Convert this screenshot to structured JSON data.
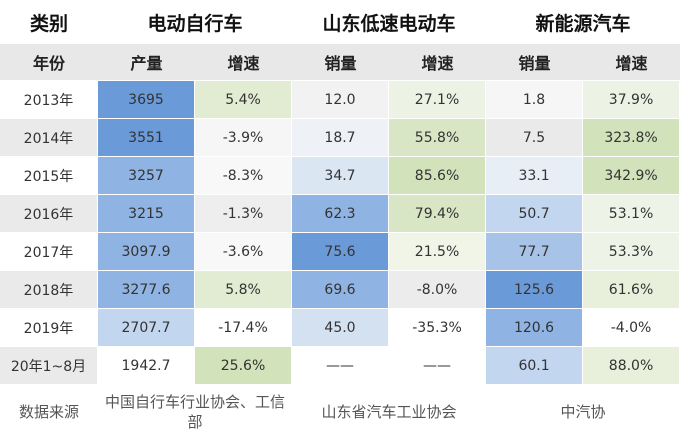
{
  "header": {
    "category_label": "类别",
    "groups": [
      "电动自行车",
      "山东低速电动车",
      "新能源汽车"
    ],
    "year_label": "年份",
    "subheaders": [
      "产量",
      "增速",
      "销量",
      "增速",
      "销量",
      "增速"
    ]
  },
  "rows": [
    {
      "year": "2013年",
      "cells": [
        "3695",
        "5.4%",
        "12.0",
        "27.1%",
        "1.8",
        "37.9%"
      ]
    },
    {
      "year": "2014年",
      "cells": [
        "3551",
        "-3.9%",
        "18.7",
        "55.8%",
        "7.5",
        "323.8%"
      ]
    },
    {
      "year": "2015年",
      "cells": [
        "3257",
        "-8.3%",
        "34.7",
        "85.6%",
        "33.1",
        "342.9%"
      ]
    },
    {
      "year": "2016年",
      "cells": [
        "3215",
        "-1.3%",
        "62.3",
        "79.4%",
        "50.7",
        "53.1%"
      ]
    },
    {
      "year": "2017年",
      "cells": [
        "3097.9",
        "-3.6%",
        "75.6",
        "21.5%",
        "77.7",
        "53.3%"
      ]
    },
    {
      "year": "2018年",
      "cells": [
        "3277.6",
        "5.8%",
        "69.6",
        "-8.0%",
        "125.6",
        "61.6%"
      ]
    },
    {
      "year": "2019年",
      "cells": [
        "2707.7",
        "-17.4%",
        "45.0",
        "-35.3%",
        "120.6",
        "-4.0%"
      ]
    },
    {
      "year": "20年1~8月",
      "cells": [
        "1942.7",
        "25.6%",
        "——",
        "——",
        "60.1",
        "88.0%"
      ]
    }
  ],
  "source": {
    "label": "数据来源",
    "values": [
      "中国自行车行业协会、工信部",
      "山东省汽车工业协会",
      "中汽协"
    ]
  },
  "colors": {
    "header_row1_bg": "#ffffff",
    "header_row2_bg": "#e8e8e8",
    "row_odd_bg": "#ffffff",
    "row_even_bg": "#eaeaea",
    "blue_scale": [
      "#d0dff0",
      "#b4cceb",
      "#8fb3e3",
      "#6b9ad9"
    ],
    "green_scale": [
      "#edf3e4",
      "#e2ecd3",
      "#d2e3bc"
    ]
  },
  "cell_fills": [
    [
      "#6b9ad9",
      "#e2ecd3",
      "#f2f2f2",
      "#edf3e4",
      "#f6f6f6",
      "#edf3e4"
    ],
    [
      "#6b9ad9",
      "#f6f6f6",
      "#eef1f6",
      "#d8e6c5",
      "#eaeaea",
      "#d2e3bc"
    ],
    [
      "#8fb3e3",
      "#f8f8f8",
      "#dbe6f3",
      "#d2e3bc",
      "#e8eef6",
      "#d2e3bc"
    ],
    [
      "#8fb3e3",
      "#eeeeee",
      "#8fb3e3",
      "#d8e6c5",
      "#c3d6ef",
      "#eef3e8"
    ],
    [
      "#8fb3e3",
      "#f8f8f8",
      "#6b9ad9",
      "#f0f5e8",
      "#a8c3e8",
      "#eef3e8"
    ],
    [
      "#8fb3e3",
      "#e2ecd3",
      "#8fb3e3",
      "#ececec",
      "#6b9ad9",
      "#e8f0dc"
    ],
    [
      "#c3d6ef",
      "#ffffff",
      "#d4e1f1",
      "#ffffff",
      "#8fb3e3",
      "#ffffff"
    ],
    [
      "#ffffff",
      "#d2e3bc",
      "#ffffff",
      "#ffffff",
      "#c3d6ef",
      "#e8f0dc"
    ]
  ]
}
